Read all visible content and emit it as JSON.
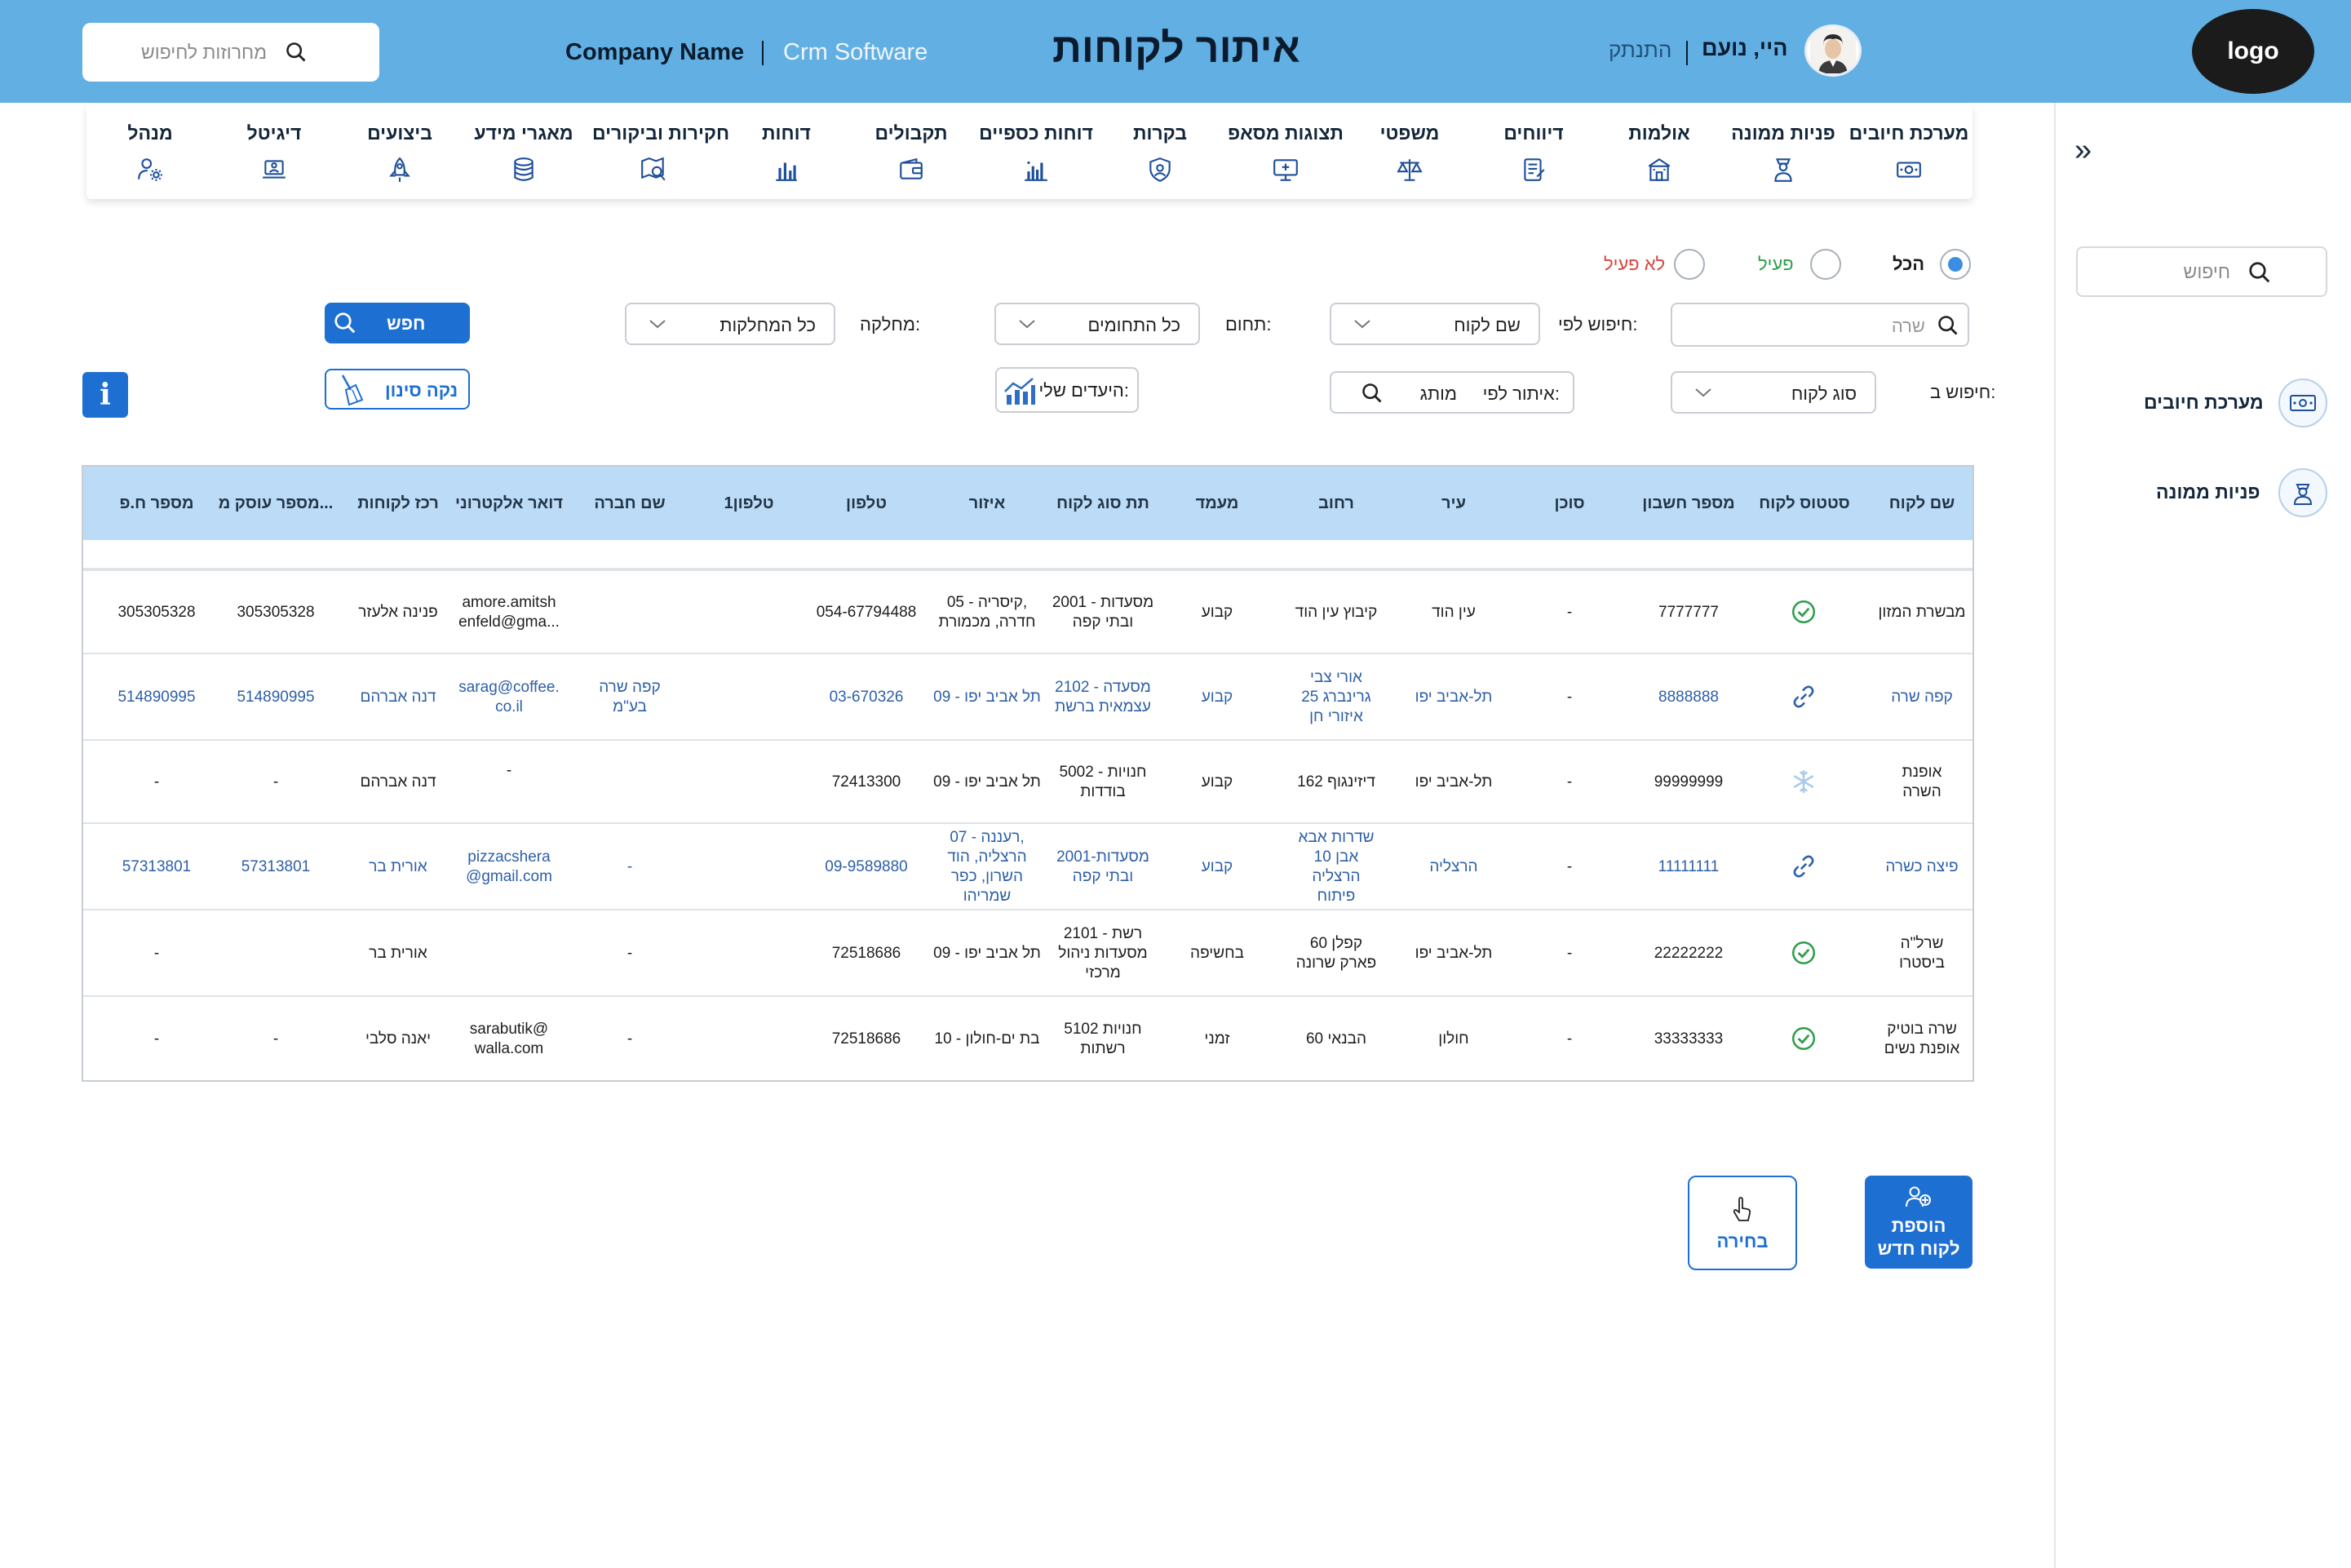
{
  "header": {
    "logo": "logo",
    "greeting": "היי, נועם",
    "logout": "התנתק",
    "title": "איתור לקוחות",
    "company": "Company Name",
    "product": "Crm Software",
    "search_placeholder": "מחרוזות לחיפוש"
  },
  "sidebar": {
    "search_placeholder": "חיפוש",
    "items": [
      {
        "label": "מערכת חיובים",
        "icon": "money-icon"
      },
      {
        "label": "פניות ממונה",
        "icon": "supervisor-icon"
      }
    ]
  },
  "nav": [
    {
      "label": "מערכת חיובים",
      "icon": "money-icon"
    },
    {
      "label": "פניות ממונה",
      "icon": "supervisor-icon"
    },
    {
      "label": "אולמות",
      "icon": "hall-icon"
    },
    {
      "label": "דיווחים",
      "icon": "report-icon"
    },
    {
      "label": "משפטי",
      "icon": "scales-icon"
    },
    {
      "label": "תצוגות מסאפ",
      "icon": "display-icon"
    },
    {
      "label": "בקרות",
      "icon": "shield-icon"
    },
    {
      "label": "דוחות כספיים",
      "icon": "finance-chart-icon"
    },
    {
      "label": "תקבולים",
      "icon": "wallet-icon"
    },
    {
      "label": "דוחות",
      "icon": "bar-chart-icon"
    },
    {
      "label": "חקירות וביקורים",
      "icon": "map-search-icon"
    },
    {
      "label": "מאגרי מידע",
      "icon": "database-icon"
    },
    {
      "label": "ביצועים",
      "icon": "rocket-icon"
    },
    {
      "label": "דיגיטל",
      "icon": "laptop-icon"
    },
    {
      "label": "מנהל",
      "icon": "user-gear-icon"
    }
  ],
  "filters": {
    "status_options": [
      {
        "label": "הכל",
        "selected": true
      },
      {
        "label": "פעיל",
        "selected": false,
        "color": "#2e9e4a"
      },
      {
        "label": "לא פעיל",
        "selected": false,
        "color": "#d9453d"
      }
    ],
    "search_placeholder": "שרה",
    "search_by_label": "חיפוש לפי:",
    "search_by_value": "שם לקוח",
    "domain_label": "תחום:",
    "domain_value": "כל התחומים",
    "department_label": "מחלקה:",
    "department_value": "כל המחלקות",
    "search_button": "חפש",
    "search_in_label": "חיפוש ב:",
    "customer_type_value": "סוג לקוח",
    "locate_by_label": "איתור לפי:",
    "locate_by_value": "מותג",
    "goals_label": "היעדים שלי:",
    "clear_button": "נקה סינון",
    "info_label": "i"
  },
  "table": {
    "columns": [
      "שם לקוח",
      "סטטוס לקוח",
      "מספר חשבון",
      "סוכן",
      "עיר",
      "רחוב",
      "מעמד",
      "תת סוג לקוח",
      "איזור",
      "טלפון",
      "טלפון1",
      "שם חברה",
      "דואר אלקטרוני",
      "רכז לקוחות",
      "מספר עוסק מ...",
      "מספר ח.פ"
    ],
    "rows": [
      {
        "name": "מבשרת המזון",
        "status": "active",
        "account": "7777777",
        "agent": "-",
        "city": "עין הוד",
        "street": "קיבוץ עין הוד",
        "standing": "קבוע",
        "subtype": "2001 - מסעדות\nובתי קפה",
        "area": "05 - קיסריה,\nחדרה, מכמורת",
        "phone": "054-67794488",
        "phone1": "",
        "company": "",
        "email": "amore.amitsh\nenfeld@gma...",
        "coordinator": "פנינה אלעזר",
        "dealer": "305305328",
        "hp": "305305328",
        "link": false
      },
      {
        "name": "קפה שרה",
        "status": "linked",
        "account": "8888888",
        "agent": "-",
        "city": "תל-אביב יפו",
        "street": "אורי צבי\nגרינברג 25\nאיזורי חן",
        "standing": "קבוע",
        "subtype": "2102 - מסעדה\nעצמאית ברשת",
        "area": "09 - תל אביב יפו",
        "phone": "03-670326",
        "phone1": "",
        "company": "קפה שרה\nבע\"מ",
        "email": "sarag@coffee.\nco.il",
        "coordinator": "דנה אברהם",
        "dealer": "514890995",
        "hp": "514890995",
        "link": true
      },
      {
        "name": "אופנת\nהשרה",
        "status": "frozen",
        "account": "99999999",
        "agent": "-",
        "city": "תל-אביב יפו",
        "street": "דיזינגוף 162",
        "standing": "קבוע",
        "subtype": "5002 - חנויות\nבודדות",
        "area": "09 - תל אביב יפו",
        "phone": "72413300",
        "phone1": "",
        "company": "",
        "email": "-",
        "coordinator": "דנה אברהם",
        "dealer": "-",
        "hp": "-",
        "link": false
      },
      {
        "name": "פיצה כשרה",
        "status": "linked",
        "account": "11111111",
        "agent": "-",
        "city": "הרצליה",
        "street": "שדרות אבא\nאבן 10\nהרצליה\nפיתוח",
        "standing": "קבוע",
        "subtype": "2001-מסעדות\nובתי קפה",
        "area": "07 - רעננה,\nהרצליה, הוד\nהשרון, כפר\nשמריהו",
        "phone": "09-9589880",
        "phone1": "",
        "company": "-",
        "email": "pizzacshera\n@gmail.com",
        "coordinator": "אורית בר",
        "dealer": "57313801",
        "hp": "57313801",
        "link": true
      },
      {
        "name": "שרל\"ה\nביסטרו",
        "status": "active",
        "account": "22222222",
        "agent": "-",
        "city": "תל-אביב יפו",
        "street": "קפלן 60\nפארק שרונה",
        "standing": "בחשיפה",
        "subtype": "2101 - רשת\nמסעדות ניהול\nמרכזי",
        "area": "09 - תל אביב יפו",
        "phone": "72518686",
        "phone1": "",
        "company": "-",
        "email": "",
        "coordinator": "אורית בר",
        "dealer": "",
        "hp": "-",
        "link": false
      },
      {
        "name": "שרה בוטיק\nאופנת נשים",
        "status": "active",
        "account": "33333333",
        "agent": "-",
        "city": "חולון",
        "street": "הבנאי 60",
        "standing": "זמני",
        "subtype": "5102 חנויות\nרשתות",
        "area": "10 - בת ים-חולון",
        "phone": "72518686",
        "phone1": "",
        "company": "-",
        "email": "sarabutik@\nwalla.com",
        "coordinator": "יאנה סלבי",
        "dealer": "-",
        "hp": "-",
        "link": false
      }
    ]
  },
  "actions": {
    "add_customer": "הוספת\nלקוח חדש",
    "select": "בחירה"
  },
  "colors": {
    "header_bg": "#62b0e3",
    "primary": "#1e6fd2",
    "table_header": "#bcdbf7",
    "active_green": "#2e9e4a",
    "inactive_red": "#d9453d"
  }
}
